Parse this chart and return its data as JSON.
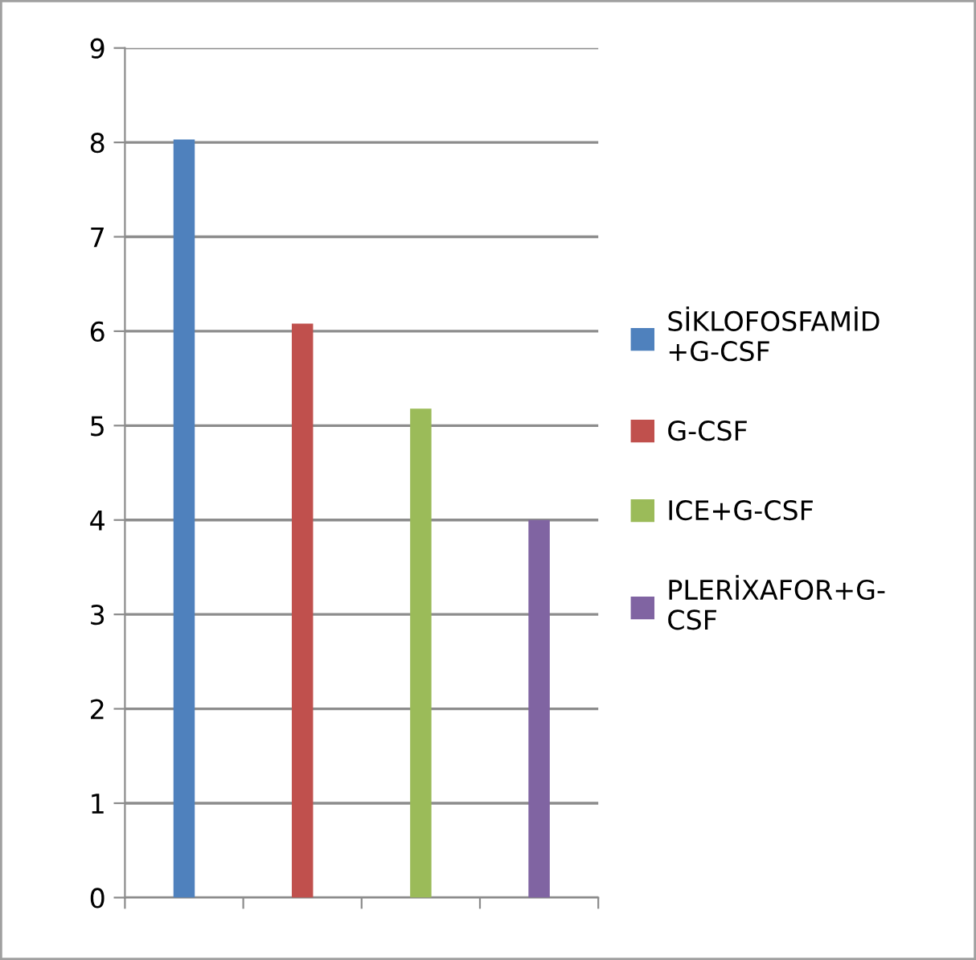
{
  "chart_data": {
    "type": "bar",
    "categories": [
      null,
      null,
      null,
      null
    ],
    "series": [
      {
        "name": "SİKLOFOSFAMİD+G-CSF",
        "color": "#4f81bd",
        "values": [
          8.03,
          null,
          null,
          null
        ]
      },
      {
        "name": "G-CSF",
        "color": "#c0504d",
        "values": [
          null,
          6.08,
          null,
          null
        ]
      },
      {
        "name": "ICE+G-CSF",
        "color": "#9bbb59",
        "values": [
          null,
          null,
          5.18,
          null
        ]
      },
      {
        "name": "PLERİXAFOR+G-CSF",
        "color": "#8064a2",
        "values": [
          null,
          null,
          null,
          4.0
        ]
      }
    ],
    "ylim": [
      0,
      9
    ],
    "yticks": [
      0,
      1,
      2,
      3,
      4,
      5,
      6,
      7,
      8,
      9
    ],
    "grid": "y",
    "legend": "right"
  }
}
